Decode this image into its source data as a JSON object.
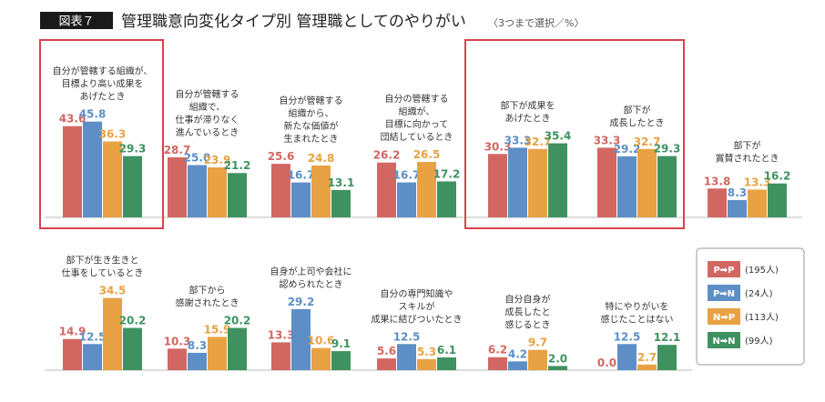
{
  "header": {
    "figure_label": "図表７",
    "title": "管理職意向変化タイプ別 管理職としてのやりがい",
    "note": "〈3つまで選択／%〉"
  },
  "colors": {
    "P→P": "#d26762",
    "P→N": "#5d8fc6",
    "N→P": "#e8a244",
    "N→N": "#3f9260",
    "highlight": "#d8424f",
    "label_text": "#333333",
    "header_bg": "#1a1a1a"
  },
  "legend": [
    {
      "key": "P→P",
      "label": "P➡P",
      "count": "(195人)"
    },
    {
      "key": "P→N",
      "label": "P➡N",
      "count": "(24人)"
    },
    {
      "key": "N→P",
      "label": "N➡P",
      "count": "(113人)"
    },
    {
      "key": "N→N",
      "label": "N➡N",
      "count": "(99人)"
    }
  ],
  "chart_data": {
    "type": "bar",
    "title": "管理職意向変化タイプ別 管理職としてのやりがい",
    "unit": "%",
    "series_keys": [
      "P→P",
      "P→N",
      "N→P",
      "N→N"
    ],
    "categories": [
      {
        "lines": [
          "自分が管轄する組織が、",
          "目標より高い成果を",
          "あげたとき"
        ],
        "values": [
          43.6,
          45.8,
          36.3,
          29.3
        ],
        "highlight": true
      },
      {
        "lines": [
          "自分が管轄する",
          "組織で、",
          "仕事が滞りなく",
          "進んでいるとき"
        ],
        "values": [
          28.7,
          25.0,
          23.9,
          21.2
        ],
        "highlight": false
      },
      {
        "lines": [
          "自分が管轄する",
          "組織から、",
          "新たな価値が",
          "生まれたとき"
        ],
        "values": [
          25.6,
          16.7,
          24.8,
          13.1
        ],
        "highlight": false
      },
      {
        "lines": [
          "自分の管轄する",
          "組織が、",
          "目標に向かって",
          "団結しているとき"
        ],
        "values": [
          26.2,
          16.7,
          26.5,
          17.2
        ],
        "highlight": false
      },
      {
        "lines": [
          "部下が成果を",
          "あげたとき"
        ],
        "values": [
          30.3,
          33.3,
          32.7,
          35.4
        ],
        "highlight": true
      },
      {
        "lines": [
          "部下が",
          "成長したとき"
        ],
        "values": [
          33.3,
          29.2,
          32.7,
          29.3
        ],
        "highlight": true
      },
      {
        "lines": [
          "部下が",
          "賞賛されたとき"
        ],
        "values": [
          13.8,
          8.3,
          13.3,
          16.2
        ],
        "highlight": false
      },
      {
        "lines": [
          "部下が生き生きと",
          "仕事をしているとき"
        ],
        "values": [
          14.9,
          12.5,
          34.5,
          20.2
        ],
        "highlight": false
      },
      {
        "lines": [
          "部下から",
          "感謝されたとき"
        ],
        "values": [
          10.3,
          8.3,
          15.9,
          20.2
        ],
        "highlight": false
      },
      {
        "lines": [
          "自身が上司や会社に",
          "認められたとき"
        ],
        "values": [
          13.3,
          29.2,
          10.6,
          9.1
        ],
        "highlight": false
      },
      {
        "lines": [
          "自分の専門知識や",
          "スキルが",
          "成果に結びついたとき"
        ],
        "values": [
          5.6,
          12.5,
          5.3,
          6.1
        ],
        "highlight": false
      },
      {
        "lines": [
          "自分自身が",
          "成長したと",
          "感じるとき"
        ],
        "values": [
          6.2,
          4.2,
          9.7,
          2.0
        ],
        "highlight": false
      },
      {
        "lines": [
          "特にやりがいを",
          "感じたことはない"
        ],
        "values": [
          0.0,
          12.5,
          2.7,
          12.1
        ],
        "highlight": false
      }
    ]
  }
}
